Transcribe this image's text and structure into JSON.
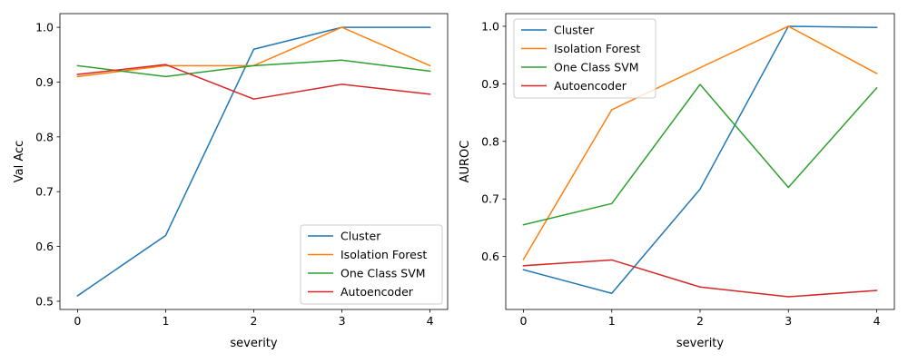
{
  "chart_data": [
    {
      "type": "line",
      "title": "",
      "xlabel": "severity",
      "ylabel": "Val Acc",
      "x": [
        0,
        1,
        2,
        3,
        4
      ],
      "xlim": [
        -0.2,
        4.2
      ],
      "ylim": [
        0.485,
        1.025
      ],
      "xticks": [
        0,
        1,
        2,
        3,
        4
      ],
      "yticks": [
        0.5,
        0.6,
        0.7,
        0.8,
        0.9,
        1.0
      ],
      "ytick_labels": [
        "0.5",
        "0.6",
        "0.7",
        "0.8",
        "0.9",
        "1.0"
      ],
      "legend_loc": "lower-right",
      "grid": false,
      "series": [
        {
          "name": "Cluster",
          "color": "#1f77b4",
          "values": [
            0.51,
            0.62,
            0.96,
            1.0,
            1.0
          ]
        },
        {
          "name": "Isolation Forest",
          "color": "#ff7f0e",
          "values": [
            0.91,
            0.93,
            0.93,
            1.0,
            0.93
          ]
        },
        {
          "name": "One Class SVM",
          "color": "#2ca02c",
          "values": [
            0.93,
            0.91,
            0.93,
            0.94,
            0.92
          ]
        },
        {
          "name": "Autoencoder",
          "color": "#d62728",
          "values": [
            0.914,
            0.932,
            0.869,
            0.896,
            0.878
          ]
        }
      ]
    },
    {
      "type": "line",
      "title": "",
      "xlabel": "severity",
      "ylabel": "AUROC",
      "x": [
        0,
        1,
        2,
        3,
        4
      ],
      "xlim": [
        -0.2,
        4.2
      ],
      "ylim": [
        0.508,
        1.022
      ],
      "xticks": [
        0,
        1,
        2,
        3,
        4
      ],
      "yticks": [
        0.6,
        0.7,
        0.8,
        0.9,
        1.0
      ],
      "ytick_labels": [
        "0.6",
        "0.7",
        "0.8",
        "0.9",
        "1.0"
      ],
      "legend_loc": "upper-left",
      "grid": false,
      "series": [
        {
          "name": "Cluster",
          "color": "#1f77b4",
          "values": [
            0.577,
            0.536,
            0.717,
            1.0,
            0.998
          ]
        },
        {
          "name": "Isolation Forest",
          "color": "#ff7f0e",
          "values": [
            0.595,
            0.855,
            0.928,
            1.0,
            0.918
          ]
        },
        {
          "name": "One Class SVM",
          "color": "#2ca02c",
          "values": [
            0.655,
            0.692,
            0.899,
            0.72,
            0.893
          ]
        },
        {
          "name": "Autoencoder",
          "color": "#d62728",
          "values": [
            0.584,
            0.594,
            0.547,
            0.53,
            0.541
          ]
        }
      ]
    }
  ]
}
